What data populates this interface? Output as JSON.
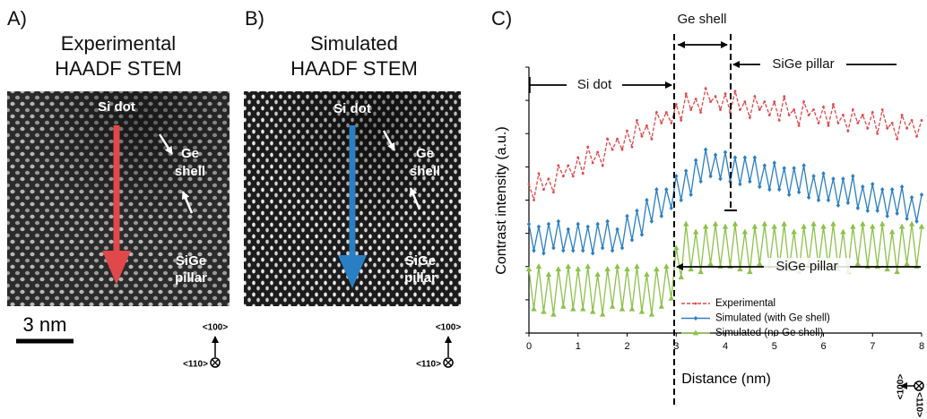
{
  "panels": [
    {
      "label": "A)",
      "title": [
        "Experimental",
        "HAADF STEM"
      ],
      "annotations": {
        "si_dot": "Si dot",
        "ge_shell": [
          "Ge",
          "shell"
        ],
        "sige_pillar": [
          "SiGe",
          "pillar"
        ]
      },
      "scale_bar": "3 nm",
      "orientation": [
        "<100>",
        "<110>"
      ]
    },
    {
      "label": "B)",
      "title": [
        "Simulated",
        "HAADF STEM"
      ],
      "annotations": {
        "si_dot": "Si dot",
        "ge_shell": [
          "Ge",
          "shell"
        ],
        "sige_pillar": [
          "SiGe",
          "pillar"
        ]
      },
      "orientation": [
        "<100>",
        "<110>"
      ]
    }
  ],
  "chart_data": {
    "type": "line",
    "panel_label": "C)",
    "xlabel": "Distance (nm)",
    "ylabel": "Contrast intensity (a.u.)",
    "x": [
      0,
      0.1,
      0.2,
      0.3,
      0.4,
      0.5,
      0.6,
      0.7,
      0.8,
      0.9,
      1,
      1.1,
      1.2,
      1.3,
      1.4,
      1.5,
      1.6,
      1.7,
      1.8,
      1.9,
      2,
      2.1,
      2.2,
      2.3,
      2.4,
      2.5,
      2.6,
      2.7,
      2.8,
      2.9,
      3,
      3.1,
      3.2,
      3.3,
      3.4,
      3.5,
      3.6,
      3.7,
      3.8,
      3.9,
      4,
      4.1,
      4.2,
      4.3,
      4.4,
      4.5,
      4.6,
      4.7,
      4.8,
      4.9,
      5,
      5.1,
      5.2,
      5.3,
      5.4,
      5.5,
      5.6,
      5.7,
      5.8,
      5.9,
      6,
      6.1,
      6.2,
      6.3,
      6.4,
      6.5,
      6.6,
      6.7,
      6.8,
      6.9,
      7,
      7.1,
      7.2,
      7.3,
      7.4,
      7.5,
      7.6,
      7.7,
      7.8,
      7.9,
      8
    ],
    "xlim": [
      0,
      8
    ],
    "xticks": [
      0,
      1,
      2,
      3,
      4,
      5,
      6,
      7,
      8
    ],
    "ylim": [
      0,
      10
    ],
    "series": [
      {
        "name": "Experimental",
        "color": "#e0484b",
        "dashed": true,
        "marker": "dot",
        "values": [
          5.6,
          5.0,
          6.0,
          5.4,
          5.8,
          5.3,
          6.3,
          5.9,
          6.3,
          5.9,
          6.6,
          6.0,
          7.0,
          6.4,
          6.8,
          6.3,
          7.3,
          6.9,
          7.3,
          6.9,
          7.6,
          7.0,
          8.0,
          7.4,
          7.8,
          7.3,
          8.3,
          7.9,
          8.3,
          7.9,
          8.6,
          8.0,
          9.0,
          8.4,
          8.8,
          8.3,
          9.2,
          8.7,
          8.9,
          8.4,
          9.0,
          8.3,
          9.1,
          8.4,
          8.7,
          8.1,
          8.9,
          8.4,
          8.7,
          8.2,
          8.7,
          8.0,
          8.9,
          8.2,
          8.4,
          7.8,
          8.7,
          8.2,
          8.4,
          7.9,
          8.5,
          7.8,
          8.6,
          7.9,
          8.2,
          7.6,
          8.4,
          7.9,
          8.2,
          7.7,
          8.3,
          7.5,
          8.4,
          7.7,
          7.9,
          7.3,
          8.2,
          7.7,
          8.0,
          7.4,
          8.0
        ]
      },
      {
        "name": "Simulated (with Ge shell)",
        "color": "#2a7fc4",
        "dashed": false,
        "marker": "diamond",
        "values": [
          4.1,
          3.1,
          4.0,
          3.0,
          4.1,
          3.2,
          4.2,
          3.1,
          3.9,
          3.1,
          4.1,
          3.1,
          4.0,
          3.0,
          4.1,
          3.2,
          4.2,
          3.1,
          3.9,
          3.2,
          4.4,
          3.5,
          4.6,
          3.7,
          5.0,
          4.2,
          5.4,
          4.4,
          5.4,
          4.7,
          5.9,
          5.0,
          6.1,
          5.2,
          6.5,
          5.7,
          6.9,
          5.9,
          6.7,
          5.8,
          6.8,
          5.7,
          6.6,
          5.6,
          6.6,
          5.7,
          6.6,
          5.5,
          6.3,
          5.4,
          6.4,
          5.4,
          6.2,
          5.2,
          6.2,
          5.3,
          6.3,
          5.1,
          5.9,
          5.0,
          6.0,
          5.0,
          5.8,
          4.8,
          5.8,
          4.9,
          5.9,
          4.7,
          5.5,
          4.6,
          5.6,
          4.6,
          5.4,
          4.4,
          5.4,
          4.5,
          5.5,
          4.3,
          5.1,
          4.2,
          5.2
        ]
      },
      {
        "name": "Simulated (no Ge shell)",
        "color": "#8cc24a",
        "dashed": false,
        "marker": "triangle",
        "values": [
          2.4,
          0.9,
          2.5,
          0.8,
          2.2,
          0.7,
          2.4,
          1.0,
          2.5,
          0.9,
          2.4,
          0.9,
          2.5,
          0.8,
          2.2,
          0.7,
          2.4,
          1.0,
          2.5,
          0.9,
          2.4,
          0.9,
          2.5,
          0.8,
          2.2,
          0.7,
          2.4,
          1.0,
          2.5,
          1.3,
          3.2,
          2.1,
          4.1,
          2.4,
          3.8,
          2.3,
          4.0,
          2.6,
          4.1,
          2.5,
          4.0,
          2.5,
          4.1,
          2.4,
          3.8,
          2.3,
          4.0,
          2.6,
          4.1,
          2.5,
          4.0,
          2.5,
          4.1,
          2.4,
          3.8,
          2.3,
          4.0,
          2.6,
          4.1,
          2.5,
          4.0,
          2.5,
          4.1,
          2.4,
          3.8,
          2.3,
          4.0,
          2.6,
          4.1,
          2.5,
          4.0,
          2.5,
          4.1,
          2.4,
          3.8,
          2.3,
          4.0,
          2.6,
          4.1,
          2.5,
          4.0
        ]
      }
    ],
    "annotations": {
      "ge_shell": "Ge shell",
      "si_dot": "Si dot",
      "sige_pillar_top": "SiGe pillar",
      "sige_pillar_bottom": "SiGe pillar"
    },
    "orientation": [
      "<100>",
      "<110>"
    ]
  }
}
